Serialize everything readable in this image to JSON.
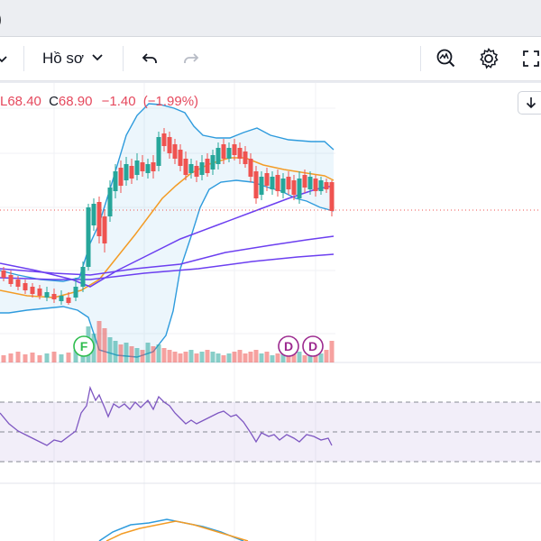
{
  "window": {
    "title_fragment": ")"
  },
  "toolbar": {
    "profile_label": "Hồ sơ",
    "icons": [
      "chevron-down-icon",
      "undo-icon",
      "redo-icon",
      "indicators-icon",
      "settings-icon",
      "fullscreen-icon"
    ]
  },
  "legend": {
    "low_prefix": "L",
    "low_value": "68.40",
    "close_prefix": "C",
    "close_value": "68.90",
    "change": "−1.40",
    "change_percent": "(−1.99%)"
  },
  "chart_data": {
    "type": "candlestick",
    "last_price": 68.9,
    "markers": [
      {
        "label": "F"
      },
      {
        "label": "D"
      },
      {
        "label": "D"
      }
    ],
    "colors": {
      "up": "#26a69a",
      "down": "#ef5350",
      "bollinger": "#2e9bdd",
      "ma_orange": "#f39c26",
      "ma_purple": "#6c3ff0",
      "rsi": "#7e57c2"
    }
  }
}
